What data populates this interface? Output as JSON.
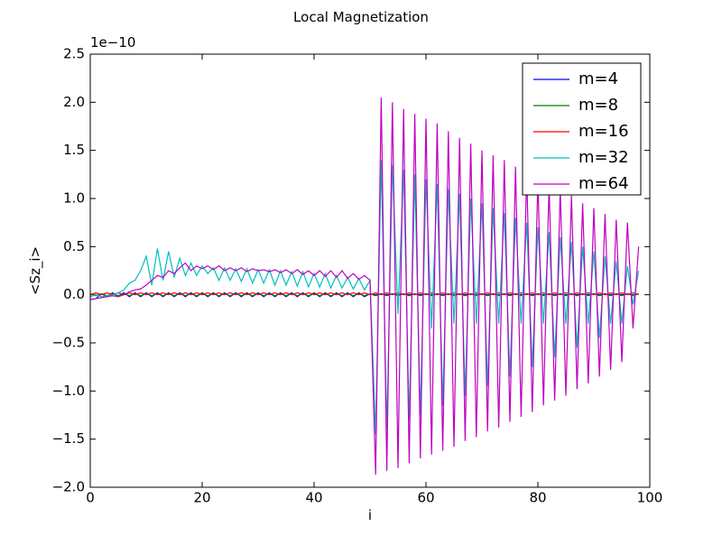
{
  "chart_data": {
    "type": "line",
    "title": "Local Magnetization",
    "x_label": "i",
    "y_label": "<Sz_i>",
    "y_offset": "1e−10",
    "xlim": [
      0,
      100
    ],
    "xticks": [
      0,
      20,
      40,
      60,
      80,
      100
    ],
    "ylim": [
      -2.0,
      2.5
    ],
    "yticks": [
      {
        "value": -2.0,
        "label": "−2.0"
      },
      {
        "value": -1.5,
        "label": "−1.5"
      },
      {
        "value": -1.0,
        "label": "−1.0"
      },
      {
        "value": -0.5,
        "label": "−0.5"
      },
      {
        "value": 0,
        "label": "0.0"
      },
      0.5,
      {
        "value": 1,
        "label": "1.0"
      },
      1.5,
      {
        "value": 2,
        "label": "2.0"
      },
      2.5
    ],
    "legend": "upper right",
    "x": [
      0,
      1,
      2,
      3,
      4,
      5,
      6,
      7,
      8,
      9,
      10,
      11,
      12,
      13,
      14,
      15,
      16,
      17,
      18,
      19,
      20,
      21,
      22,
      23,
      24,
      25,
      26,
      27,
      28,
      29,
      30,
      31,
      32,
      33,
      34,
      35,
      36,
      37,
      38,
      39,
      40,
      41,
      42,
      43,
      44,
      45,
      46,
      47,
      48,
      49,
      50,
      51,
      52,
      53,
      54,
      55,
      56,
      57,
      58,
      59,
      60,
      61,
      62,
      63,
      64,
      65,
      66,
      67,
      68,
      69,
      70,
      71,
      72,
      73,
      74,
      75,
      76,
      77,
      78,
      79,
      80,
      81,
      82,
      83,
      84,
      85,
      86,
      87,
      88,
      89,
      90,
      91,
      92,
      93,
      94,
      95,
      96,
      97,
      98
    ],
    "series": [
      {
        "name": "m=4",
        "color": "#0000ff",
        "values": [
          -0.05,
          -0.04,
          0.01,
          -0.02,
          0.02,
          -0.02,
          0.02,
          -0.02,
          0.02,
          -0.02,
          0.02,
          -0.02,
          0.02,
          -0.02,
          0.02,
          -0.02,
          0.02,
          -0.02,
          0.02,
          -0.02,
          0.02,
          -0.02,
          0.02,
          -0.02,
          0.02,
          -0.02,
          0.02,
          -0.02,
          0.02,
          -0.02,
          0.02,
          -0.02,
          0.02,
          -0.02,
          0.02,
          -0.02,
          0.02,
          -0.02,
          0.02,
          -0.02,
          0.02,
          -0.02,
          0.02,
          -0.02,
          0.02,
          -0.02,
          0.02,
          -0.02,
          0.02,
          -0.02,
          0.01,
          0.0,
          0.01,
          0.0,
          0.01,
          0.0,
          0.01,
          0.0,
          0.01,
          0.0,
          0.01,
          0.0,
          0.01,
          0.0,
          0.01,
          0.0,
          0.01,
          0.0,
          0.01,
          0.0,
          0.01,
          0.0,
          0.01,
          0.0,
          0.01,
          0.0,
          0.01,
          0.0,
          0.01,
          0.0,
          0.01,
          0.0,
          0.01,
          0.0,
          0.01,
          0.0,
          0.01,
          0.0,
          0.01,
          0.0,
          0.01,
          0.0,
          0.01,
          0.0,
          0.01,
          0.0,
          0.01,
          0.0,
          0.01
        ]
      },
      {
        "name": "m=8",
        "color": "#008000",
        "values": [
          0.01,
          -0.01,
          0.01,
          -0.01,
          0.01,
          -0.01,
          0.01,
          -0.01,
          0.01,
          -0.01,
          0.01,
          -0.01,
          0.01,
          -0.01,
          0.01,
          -0.01,
          0.01,
          -0.01,
          0.01,
          -0.01,
          0.01,
          -0.01,
          0.01,
          -0.01,
          0.01,
          -0.01,
          0.01,
          -0.01,
          0.01,
          -0.01,
          0.01,
          -0.01,
          0.01,
          -0.01,
          0.01,
          -0.01,
          0.01,
          -0.01,
          0.01,
          -0.01,
          0.01,
          -0.01,
          0.01,
          -0.01,
          0.01,
          -0.01,
          0.01,
          -0.01,
          0.01,
          -0.01,
          0.01,
          -0.01,
          0.01,
          -0.01,
          0.01,
          -0.01,
          0.01,
          -0.01,
          0.01,
          -0.01,
          0.01,
          -0.01,
          0.01,
          -0.01,
          0.01,
          -0.01,
          0.01,
          -0.01,
          0.01,
          -0.01,
          0.01,
          -0.01,
          0.01,
          -0.01,
          0.01,
          -0.01,
          0.01,
          -0.01,
          0.01,
          -0.01,
          0.01,
          -0.01,
          0.01,
          -0.01,
          0.01,
          -0.01,
          0.01,
          -0.01,
          0.01,
          -0.01,
          0.01,
          -0.01,
          0.01,
          -0.01,
          0.01,
          -0.01,
          0.01,
          -0.01,
          0.01
        ]
      },
      {
        "name": "m=16",
        "color": "#ff0000",
        "values": [
          0.0,
          0.02,
          0.0,
          0.02,
          0.0,
          0.02,
          0.0,
          0.02,
          0.0,
          0.02,
          0.0,
          0.02,
          0.0,
          0.02,
          0.0,
          0.02,
          0.0,
          0.02,
          0.0,
          0.02,
          0.0,
          0.02,
          0.0,
          0.02,
          0.0,
          0.02,
          0.0,
          0.02,
          0.0,
          0.02,
          0.0,
          0.02,
          0.0,
          0.02,
          0.0,
          0.02,
          0.0,
          0.02,
          0.0,
          0.02,
          0.0,
          0.02,
          0.0,
          0.02,
          0.0,
          0.02,
          0.0,
          0.02,
          0.0,
          0.02,
          0.0,
          0.02,
          0.0,
          0.02,
          0.0,
          0.02,
          0.0,
          0.02,
          0.0,
          0.02,
          0.0,
          0.02,
          0.0,
          0.02,
          0.0,
          0.02,
          0.0,
          0.02,
          0.0,
          0.02,
          0.0,
          0.02,
          0.0,
          0.02,
          0.0,
          0.02,
          0.0,
          0.02,
          0.0,
          0.02,
          0.0,
          0.02,
          0.0,
          0.02,
          0.0,
          0.02,
          0.0,
          0.02,
          0.0,
          0.02,
          0.0,
          0.02,
          0.0,
          0.02,
          0.0,
          0.02,
          0.0,
          0.02,
          0.0
        ]
      },
      {
        "name": "m=32",
        "color": "#00bfbf",
        "values": [
          -0.02,
          0.0,
          -0.02,
          -0.01,
          0.0,
          0.02,
          0.05,
          0.12,
          0.15,
          0.25,
          0.4,
          0.1,
          0.48,
          0.15,
          0.45,
          0.18,
          0.38,
          0.2,
          0.33,
          0.2,
          0.3,
          0.22,
          0.28,
          0.15,
          0.28,
          0.15,
          0.27,
          0.14,
          0.27,
          0.12,
          0.26,
          0.12,
          0.26,
          0.1,
          0.25,
          0.1,
          0.24,
          0.09,
          0.24,
          0.08,
          0.22,
          0.08,
          0.22,
          0.07,
          0.2,
          0.07,
          0.18,
          0.06,
          0.17,
          0.05,
          0.15,
          -1.45,
          1.4,
          -1.4,
          1.35,
          -0.2,
          1.3,
          -1.3,
          1.25,
          -1.25,
          1.2,
          -0.35,
          1.15,
          -1.15,
          1.1,
          -0.3,
          1.05,
          -1.05,
          1.0,
          -0.3,
          0.95,
          -0.95,
          0.9,
          -0.3,
          0.85,
          -0.85,
          0.8,
          -0.3,
          0.75,
          -0.75,
          0.7,
          -0.3,
          0.65,
          -0.65,
          0.6,
          -0.3,
          0.55,
          -0.55,
          0.5,
          -0.3,
          0.45,
          -0.45,
          0.4,
          -0.3,
          0.35,
          -0.3,
          0.3,
          -0.1,
          0.25
        ]
      },
      {
        "name": "m=64",
        "color": "#bf00bf",
        "values": [
          -0.05,
          -0.04,
          -0.03,
          -0.02,
          -0.01,
          -0.02,
          0.0,
          0.03,
          0.05,
          0.06,
          0.1,
          0.15,
          0.2,
          0.18,
          0.25,
          0.22,
          0.28,
          0.33,
          0.25,
          0.3,
          0.27,
          0.3,
          0.26,
          0.3,
          0.25,
          0.28,
          0.25,
          0.28,
          0.24,
          0.27,
          0.25,
          0.26,
          0.24,
          0.26,
          0.23,
          0.26,
          0.22,
          0.26,
          0.21,
          0.25,
          0.2,
          0.25,
          0.19,
          0.25,
          0.18,
          0.25,
          0.17,
          0.22,
          0.16,
          0.2,
          0.15,
          -1.87,
          2.05,
          -1.83,
          2.0,
          -1.8,
          1.93,
          -1.75,
          1.88,
          -1.7,
          1.83,
          -1.66,
          1.78,
          -1.62,
          1.7,
          -1.58,
          1.63,
          -1.52,
          1.57,
          -1.48,
          1.5,
          -1.42,
          1.45,
          -1.38,
          1.4,
          -1.32,
          1.33,
          -1.27,
          1.28,
          -1.22,
          1.22,
          -1.15,
          1.15,
          -1.1,
          1.1,
          -1.05,
          1.03,
          -0.98,
          0.95,
          -0.92,
          0.9,
          -0.85,
          0.84,
          -0.78,
          0.78,
          -0.7,
          0.75,
          -0.35,
          0.5
        ]
      }
    ]
  }
}
